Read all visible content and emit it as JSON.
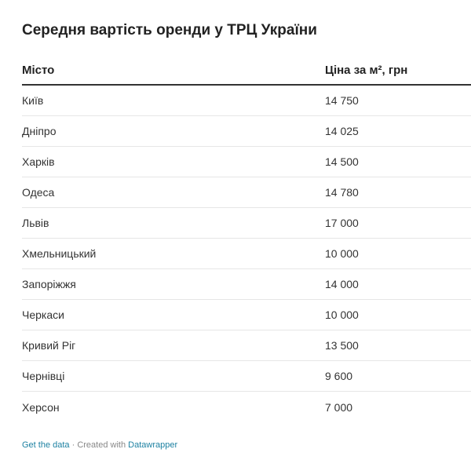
{
  "chart_data": {
    "type": "table",
    "title": "Середня вартість оренди у ТРЦ України",
    "columns": [
      "Місто",
      "Ціна за м², грн"
    ],
    "rows": [
      {
        "city": "Київ",
        "price": "14 750"
      },
      {
        "city": "Дніпро",
        "price": "14 025"
      },
      {
        "city": "Харків",
        "price": "14 500"
      },
      {
        "city": "Одеса",
        "price": "14 780"
      },
      {
        "city": "Львів",
        "price": "17 000"
      },
      {
        "city": "Хмельницький",
        "price": "10 000"
      },
      {
        "city": "Запоріжжя",
        "price": "14 000"
      },
      {
        "city": "Черкаси",
        "price": "10 000"
      },
      {
        "city": "Кривий Ріг",
        "price": "13 500"
      },
      {
        "city": "Чернівці",
        "price": "9 600"
      },
      {
        "city": "Херсон",
        "price": "7 000"
      }
    ]
  },
  "footer": {
    "get_data": "Get the data",
    "separator": " · Created with ",
    "tool": "Datawrapper"
  },
  "colors": {
    "link": "#1d81a2",
    "header_rule": "#333333",
    "row_rule": "#e6e6e6"
  }
}
